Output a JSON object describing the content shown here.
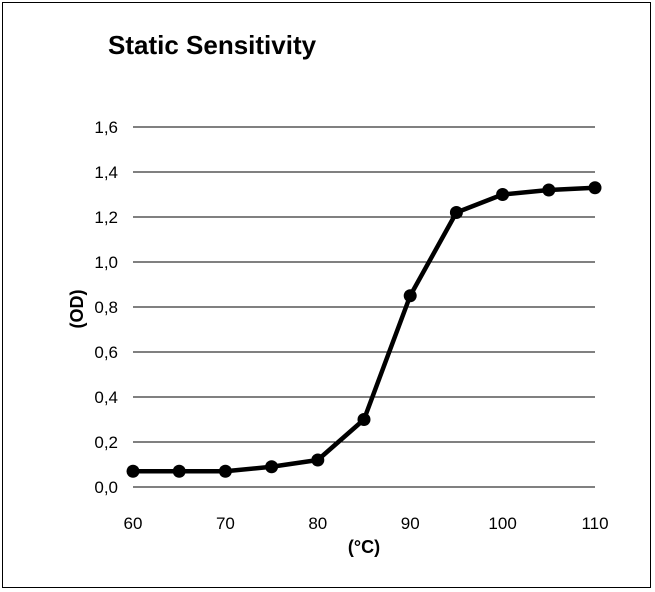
{
  "chart_data": {
    "type": "line",
    "title": "Static Sensitivity",
    "xlabel": "(°C)",
    "ylabel": "(OD)",
    "x": [
      60,
      65,
      70,
      75,
      80,
      85,
      90,
      95,
      100,
      105,
      110
    ],
    "x_ticks": [
      "60",
      "70",
      "80",
      "90",
      "100",
      "110"
    ],
    "y_ticks": [
      "0,0",
      "0,2",
      "0,4",
      "0,6",
      "0,8",
      "1,0",
      "1,2",
      "1,4",
      "1,6"
    ],
    "xlim": [
      60,
      110
    ],
    "ylim": [
      0,
      1.6
    ],
    "grid": "horizontal",
    "legend": "none",
    "series": [
      {
        "values": [
          0.07,
          0.07,
          0.07,
          0.09,
          0.12,
          0.3,
          0.85,
          1.22,
          1.3,
          1.32,
          1.33
        ]
      }
    ],
    "colors": {
      "line": "#000000",
      "marker": "#000000",
      "grid": "#000000",
      "background": "#ffffff"
    }
  }
}
